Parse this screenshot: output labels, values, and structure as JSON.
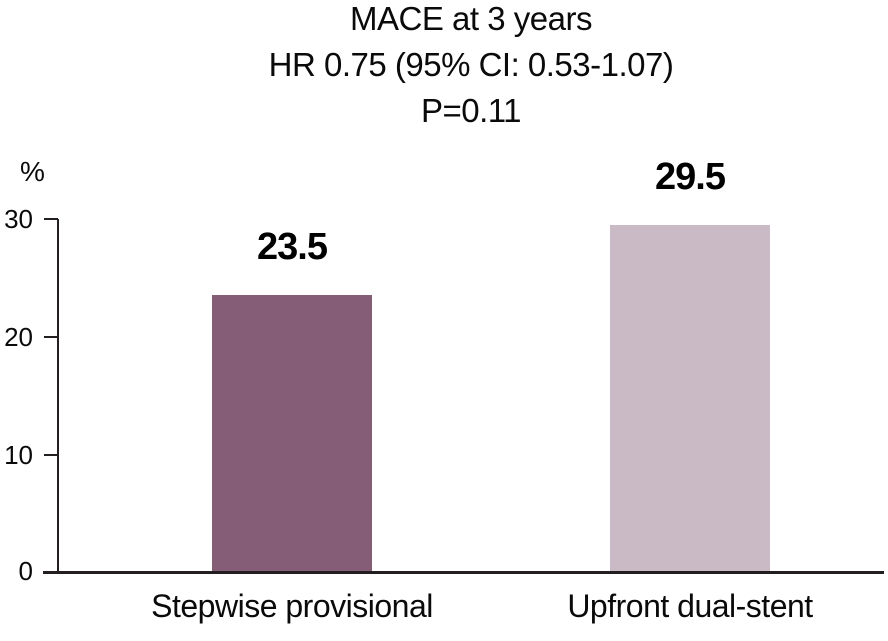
{
  "chart_data": {
    "type": "bar",
    "title": "MACE at 3 years",
    "subtitle": "HR 0.75 (95% CI: 0.53-1.07)",
    "p_value_label": "P=0.11",
    "ylabel": "%",
    "categories": [
      "Stepwise provisional",
      "Upfront dual-stent"
    ],
    "values": [
      23.5,
      29.5
    ],
    "value_labels": [
      "23.5",
      "29.5"
    ],
    "yticks": [
      "30",
      "20",
      "10",
      "0"
    ],
    "ylim": [
      0,
      30
    ],
    "bar_colors": [
      "#865D77",
      "#C9BAC6"
    ],
    "axis_color": "#231F20",
    "text_color": "#000000",
    "background": "#FFFFFF",
    "grid": "off",
    "legend": "none"
  }
}
